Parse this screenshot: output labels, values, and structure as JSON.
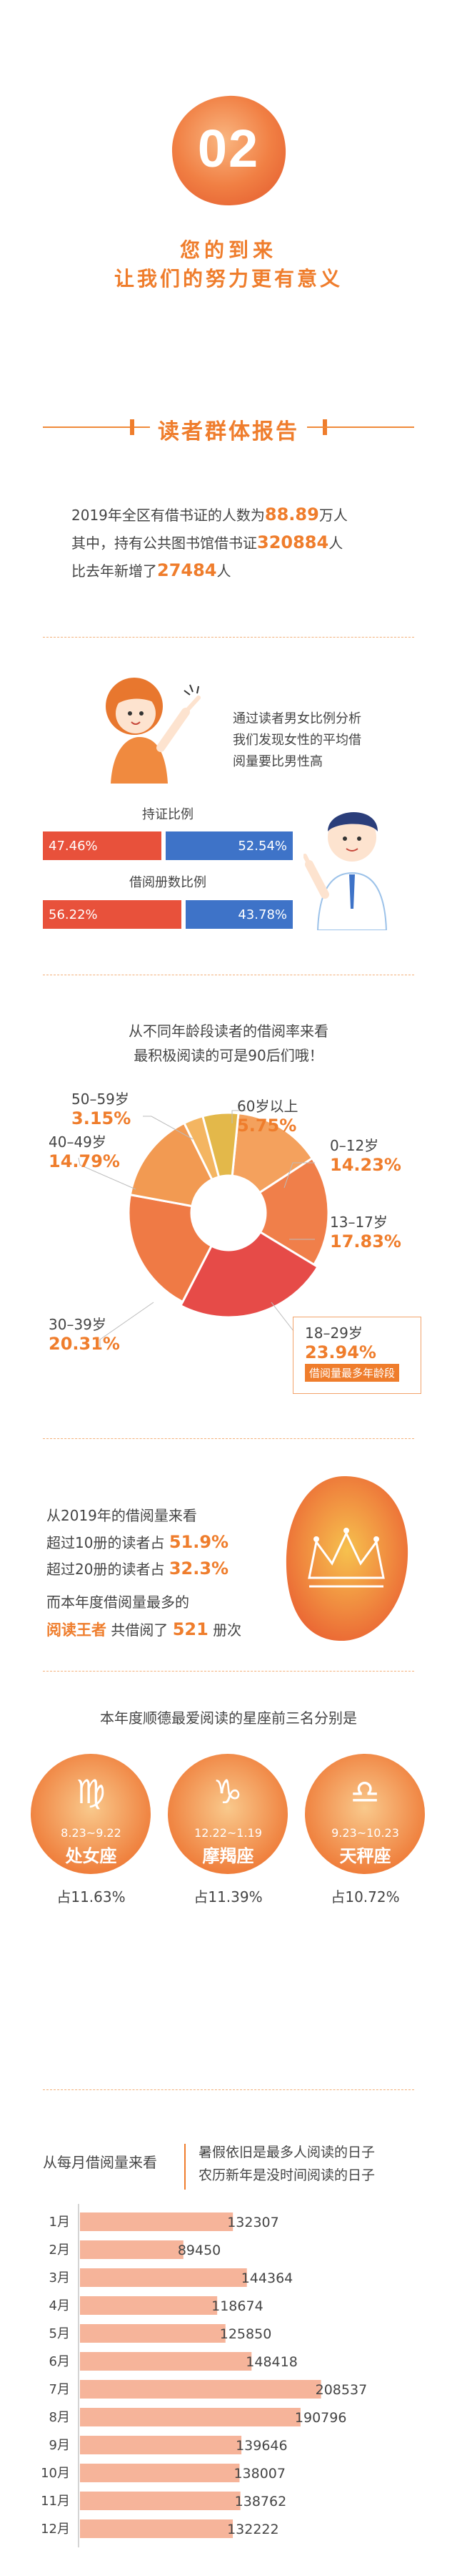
{
  "hero": {
    "number": "02",
    "tagline1": "您的到来",
    "tagline2": "让我们的努力更有意义"
  },
  "section": {
    "title": "读者群体报告"
  },
  "stats": {
    "line1_pre": "2019年全区有借书证的人数为",
    "line1_num": "88.89",
    "line1_post": "万人",
    "line2_pre": "其中，持有公共图书馆借书证",
    "line2_num": "320884",
    "line2_post": "人",
    "line3_pre": "比去年新增了",
    "line3_num": "27484",
    "line3_post": "人"
  },
  "gender": {
    "text1": "通过读者男女比例分析",
    "text2": "我们发现女性的平均借",
    "text3": "阅量要比男性高",
    "card_title": "持证比例",
    "card_female": "47.46%",
    "card_male": "52.54%",
    "card_female_value": 47.46,
    "card_male_value": 52.54,
    "borrow_title": "借阅册数比例",
    "borrow_female": "56.22%",
    "borrow_male": "43.78%",
    "borrow_female_value": 56.22,
    "borrow_male_value": 43.78,
    "colors": {
      "female": "#e8513b",
      "male": "#3e73c8"
    }
  },
  "age": {
    "intro1": "从不同年龄段读者的借阅率来看",
    "intro2": "最积极阅读的可是90后们哦！",
    "note": "借阅量最多年龄段",
    "labels": {
      "a0": "0–12岁",
      "v0": "14.23%",
      "a1": "13–17岁",
      "v1": "17.83%",
      "a2": "18–29岁",
      "v2": "23.94%",
      "a3": "30–39岁",
      "v3": "20.31%",
      "a4": "40–49岁",
      "v4": "14.79%",
      "a5": "50–59岁",
      "v5": "3.15%",
      "a6": "60岁以上",
      "v6": "5.75%"
    }
  },
  "chart_data": [
    {
      "type": "pie",
      "categories": [
        "0–12岁",
        "13–17岁",
        "18–29岁",
        "30–39岁",
        "40–49岁",
        "50–59岁",
        "60岁以上"
      ],
      "values": [
        14.23,
        17.83,
        23.94,
        20.31,
        14.79,
        3.15,
        5.75
      ],
      "colors": [
        "#f4a15d",
        "#f07f4a",
        "#e64b48",
        "#ef7a45",
        "#f29a52",
        "#f4b561",
        "#e3b84a"
      ]
    },
    {
      "type": "bar",
      "categories": [
        "1月",
        "2月",
        "3月",
        "4月",
        "5月",
        "6月",
        "7月",
        "8月",
        "9月",
        "10月",
        "11月",
        "12月"
      ],
      "values": [
        132307,
        89450,
        144364,
        118674,
        125850,
        148418,
        208537,
        190796,
        139646,
        138007,
        138762,
        132222
      ],
      "orientation": "horizontal"
    }
  ],
  "reading": {
    "l1": "从2019年的借阅量来看",
    "l2_pre": "超过10册的读者占",
    "l2_num": "51.9%",
    "l3_pre": "超过20册的读者占",
    "l3_num": "32.3%",
    "l4": "而本年度借阅量最多的",
    "l5_a": "阅读王者",
    "l5_b": "共借阅了",
    "l5_num": "521",
    "l5_c": "册次"
  },
  "stars": {
    "title": "本年度顺德最爱阅读的星座前三名分别是",
    "items": [
      {
        "date": "8.23~9.22",
        "name": "处女座",
        "pct": "占11.63%"
      },
      {
        "date": "12.22~1.19",
        "name": "摩羯座",
        "pct": "占11.39%"
      },
      {
        "date": "9.23~10.23",
        "name": "天秤座",
        "pct": "占10.72%"
      }
    ]
  },
  "monthly": {
    "heading": "从每月借阅量来看",
    "note1": "暑假依旧是最多人阅读的日子",
    "note2": "农历新年是没时间阅读的日子",
    "labels": [
      "1月",
      "2月",
      "3月",
      "4月",
      "5月",
      "6月",
      "7月",
      "8月",
      "9月",
      "10月",
      "11月",
      "12月"
    ],
    "values_text": [
      "132307",
      "89450",
      "144364",
      "118674",
      "125850",
      "148418",
      "208537",
      "190796",
      "139646",
      "138007",
      "138762",
      "132222"
    ]
  }
}
